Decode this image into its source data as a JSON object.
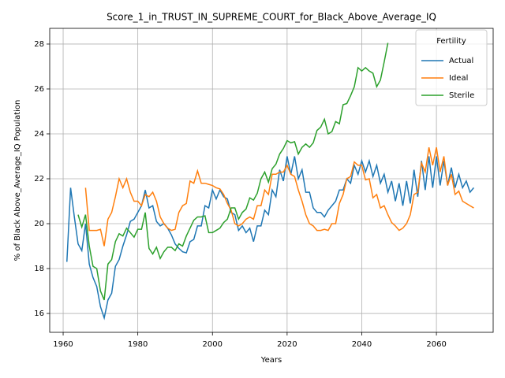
{
  "chart_data": {
    "type": "line",
    "title": "Score_1_in_TRUST_IN_SUPREME_COURT_for_Black_Above_Average_IQ",
    "xlabel": "Years",
    "ylabel": "% of Black Above_Average_IQ Population",
    "legend_title": "Fertility",
    "legend_position": "upper right",
    "grid": true,
    "xlim": [
      1956.4,
      2075.2
    ],
    "xticks": [
      1960,
      1980,
      2000,
      2020,
      2040,
      2060
    ],
    "ylim": [
      15.16,
      28.7
    ],
    "yticks": [
      16,
      18,
      20,
      22,
      24,
      26,
      28
    ],
    "series": [
      {
        "name": "Actual",
        "color": "#1f77b4",
        "x": [
          1961,
          1962,
          1963,
          1964,
          1965,
          1966,
          1967,
          1968,
          1969,
          1970,
          1971,
          1972,
          1973,
          1974,
          1975,
          1976,
          1977,
          1978,
          1979,
          1980,
          1981,
          1982,
          1983,
          1984,
          1985,
          1986,
          1987,
          1988,
          1989,
          1990,
          1991,
          1992,
          1993,
          1994,
          1995,
          1996,
          1997,
          1998,
          1999,
          2000,
          2001,
          2002,
          2003,
          2004,
          2005,
          2006,
          2007,
          2008,
          2009,
          2010,
          2011,
          2012,
          2013,
          2014,
          2015,
          2016,
          2017,
          2018,
          2019,
          2020,
          2021,
          2022,
          2023,
          2024,
          2025,
          2026,
          2027,
          2028,
          2029,
          2030,
          2031,
          2032,
          2033,
          2034,
          2035,
          2036,
          2037,
          2038,
          2039,
          2040,
          2041,
          2042,
          2043,
          2044,
          2045,
          2046,
          2047,
          2048,
          2049,
          2050,
          2051,
          2052,
          2053,
          2054,
          2055,
          2056,
          2057,
          2058,
          2059,
          2060,
          2061,
          2062,
          2063,
          2064,
          2065,
          2066,
          2067,
          2068,
          2069,
          2070
        ],
        "values": [
          18.3,
          21.6,
          20.3,
          19.1,
          18.8,
          20.0,
          18.2,
          17.6,
          17.2,
          16.3,
          15.8,
          16.6,
          16.9,
          18.1,
          18.4,
          19.0,
          19.5,
          20.1,
          20.2,
          20.5,
          20.8,
          21.5,
          20.7,
          20.8,
          20.1,
          19.9,
          20.0,
          19.8,
          19.5,
          19.1,
          18.9,
          18.75,
          18.7,
          19.2,
          19.3,
          19.9,
          19.9,
          20.8,
          20.7,
          21.5,
          21.1,
          21.5,
          21.2,
          21.1,
          20.5,
          20.4,
          19.7,
          19.9,
          19.6,
          19.8,
          19.2,
          19.9,
          19.9,
          20.6,
          20.4,
          21.5,
          21.2,
          22.4,
          21.9,
          23.0,
          22.2,
          23.0,
          22.0,
          22.4,
          21.4,
          21.4,
          20.7,
          20.5,
          20.5,
          20.3,
          20.6,
          20.8,
          21.0,
          21.5,
          21.5,
          22.0,
          21.8,
          22.6,
          22.2,
          22.8,
          22.3,
          22.8,
          22.1,
          22.6,
          21.8,
          22.2,
          21.4,
          21.9,
          21.0,
          21.8,
          20.8,
          21.9,
          20.9,
          22.4,
          21.2,
          22.8,
          21.5,
          23.0,
          21.6,
          23.0,
          21.7,
          22.8,
          21.7,
          22.5,
          21.6,
          22.2,
          21.6,
          21.9,
          21.4,
          21.6
        ]
      },
      {
        "name": "Ideal",
        "color": "#ff7f0e",
        "x": [
          1966,
          1967,
          1968,
          1969,
          1970,
          1971,
          1972,
          1973,
          1974,
          1975,
          1976,
          1977,
          1978,
          1979,
          1980,
          1981,
          1982,
          1983,
          1984,
          1985,
          1986,
          1987,
          1988,
          1989,
          1990,
          1991,
          1992,
          1993,
          1994,
          1995,
          1996,
          1997,
          1998,
          1999,
          2000,
          2001,
          2002,
          2003,
          2004,
          2005,
          2006,
          2007,
          2008,
          2009,
          2010,
          2011,
          2012,
          2013,
          2014,
          2015,
          2016,
          2017,
          2018,
          2019,
          2020,
          2021,
          2022,
          2023,
          2024,
          2025,
          2026,
          2027,
          2028,
          2029,
          2030,
          2031,
          2032,
          2033,
          2034,
          2035,
          2036,
          2037,
          2038,
          2039,
          2040,
          2041,
          2042,
          2043,
          2044,
          2045,
          2046,
          2047,
          2048,
          2049,
          2050,
          2051,
          2052,
          2053,
          2054,
          2055,
          2056,
          2057,
          2058,
          2059,
          2060,
          2061,
          2062,
          2063,
          2064,
          2065,
          2066,
          2067,
          2068,
          2069,
          2070
        ],
        "values": [
          21.6,
          19.7,
          19.7,
          19.7,
          19.75,
          19.0,
          20.2,
          20.5,
          21.2,
          22.0,
          21.6,
          22.0,
          21.4,
          21.0,
          21.0,
          20.8,
          21.3,
          21.2,
          21.4,
          21.0,
          20.3,
          20.0,
          19.8,
          19.7,
          19.75,
          20.5,
          20.8,
          20.9,
          21.9,
          21.8,
          22.35,
          21.8,
          21.8,
          21.75,
          21.7,
          21.6,
          21.55,
          21.3,
          20.9,
          20.6,
          20.0,
          19.9,
          20.0,
          20.2,
          20.3,
          20.2,
          20.8,
          20.8,
          21.5,
          21.3,
          22.2,
          22.2,
          22.3,
          22.3,
          22.6,
          22.2,
          22.1,
          21.5,
          21.0,
          20.4,
          20.0,
          19.9,
          19.7,
          19.7,
          19.75,
          19.7,
          20.0,
          20.0,
          20.9,
          21.3,
          22.0,
          22.1,
          22.75,
          22.6,
          22.6,
          21.95,
          22.0,
          21.15,
          21.3,
          20.7,
          20.8,
          20.4,
          20.05,
          19.9,
          19.7,
          19.8,
          20.0,
          20.4,
          21.3,
          21.4,
          22.7,
          22.3,
          23.4,
          22.6,
          23.4,
          22.3,
          23.0,
          21.7,
          22.2,
          21.3,
          21.45,
          21.0,
          20.9,
          20.8,
          20.7
        ]
      },
      {
        "name": "Sterile",
        "color": "#2ca02c",
        "x": [
          1964,
          1965,
          1966,
          1967,
          1968,
          1969,
          1970,
          1971,
          1972,
          1973,
          1974,
          1975,
          1976,
          1977,
          1978,
          1979,
          1980,
          1981,
          1982,
          1983,
          1984,
          1985,
          1986,
          1987,
          1988,
          1989,
          1990,
          1991,
          1992,
          1993,
          1994,
          1995,
          1996,
          1997,
          1998,
          1999,
          2000,
          2001,
          2002,
          2003,
          2004,
          2005,
          2006,
          2007,
          2008,
          2009,
          2010,
          2011,
          2012,
          2013,
          2014,
          2015,
          2016,
          2017,
          2018,
          2019,
          2020,
          2021,
          2022,
          2023,
          2024,
          2025,
          2026,
          2027,
          2028,
          2029,
          2030,
          2031,
          2032,
          2033,
          2034,
          2035,
          2036,
          2037,
          2038,
          2039,
          2040,
          2041,
          2042,
          2043,
          2044,
          2045,
          2046,
          2047
        ],
        "values": [
          20.4,
          19.85,
          20.4,
          19.0,
          18.1,
          18.0,
          17.0,
          16.6,
          18.2,
          18.4,
          19.2,
          19.55,
          19.45,
          19.8,
          19.6,
          19.4,
          19.75,
          19.75,
          20.5,
          18.9,
          18.65,
          18.95,
          18.45,
          18.75,
          18.95,
          18.95,
          18.8,
          19.1,
          19.0,
          19.45,
          19.8,
          20.15,
          20.3,
          20.3,
          20.35,
          19.6,
          19.6,
          19.7,
          19.8,
          20.05,
          20.2,
          20.7,
          20.7,
          20.2,
          20.5,
          20.65,
          21.15,
          21.05,
          21.35,
          22.0,
          22.3,
          21.85,
          22.45,
          22.65,
          23.1,
          23.35,
          23.7,
          23.6,
          23.65,
          23.1,
          23.4,
          23.55,
          23.4,
          23.6,
          24.15,
          24.3,
          24.65,
          24.0,
          24.1,
          24.55,
          24.45,
          25.3,
          25.35,
          25.7,
          26.1,
          26.95,
          26.8,
          26.95,
          26.8,
          26.7,
          26.1,
          26.4,
          27.2,
          28.05
        ]
      }
    ]
  }
}
